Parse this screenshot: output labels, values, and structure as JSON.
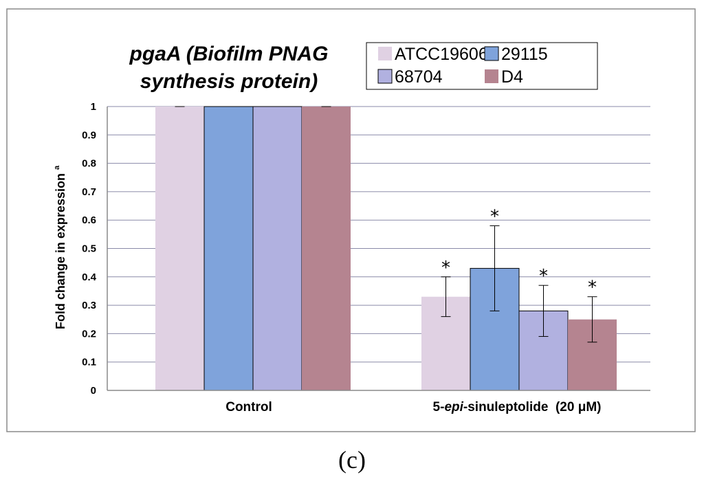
{
  "chart_data": {
    "type": "bar",
    "title_line1": "pgaA (Biofilm PNAG",
    "title_line2": "synthesis protein)",
    "ylabel": "Fold change in expression",
    "ylabel_superscript": "a",
    "xlabel": "",
    "ylim": [
      0,
      1
    ],
    "yticks": [
      "0",
      "0.1",
      "0.2",
      "0.3",
      "0.4",
      "0.5",
      "0.6",
      "0.7",
      "0.8",
      "0.9",
      "1"
    ],
    "categories": [
      "Control",
      "5-epi-sinuleptolide (20 μM)"
    ],
    "category_label_control": "Control",
    "category_label_treatment": {
      "pre": "5-",
      "ital": "epi",
      "post": "-sinuleptolide  (20 μM)"
    },
    "series": [
      {
        "name": "ATCC19606",
        "color": "#e0d1e3",
        "values": [
          1,
          0.33
        ],
        "error": [
          0,
          0.07
        ],
        "significant": [
          false,
          true
        ]
      },
      {
        "name": "29115",
        "color": "#7fa3db",
        "values": [
          1,
          0.43
        ],
        "error": [
          0,
          0.15
        ],
        "significant": [
          false,
          true
        ]
      },
      {
        "name": "68704",
        "color": "#b1b1e0",
        "values": [
          1,
          0.28
        ],
        "error": [
          0,
          0.09
        ],
        "significant": [
          false,
          true
        ]
      },
      {
        "name": "D4",
        "color": "#b58490",
        "values": [
          1,
          0.25
        ],
        "error": [
          0,
          0.08
        ],
        "significant": [
          false,
          true
        ]
      }
    ],
    "significance_marker": "*",
    "grid": true,
    "legend_position": "top-right"
  },
  "caption": "(c)"
}
